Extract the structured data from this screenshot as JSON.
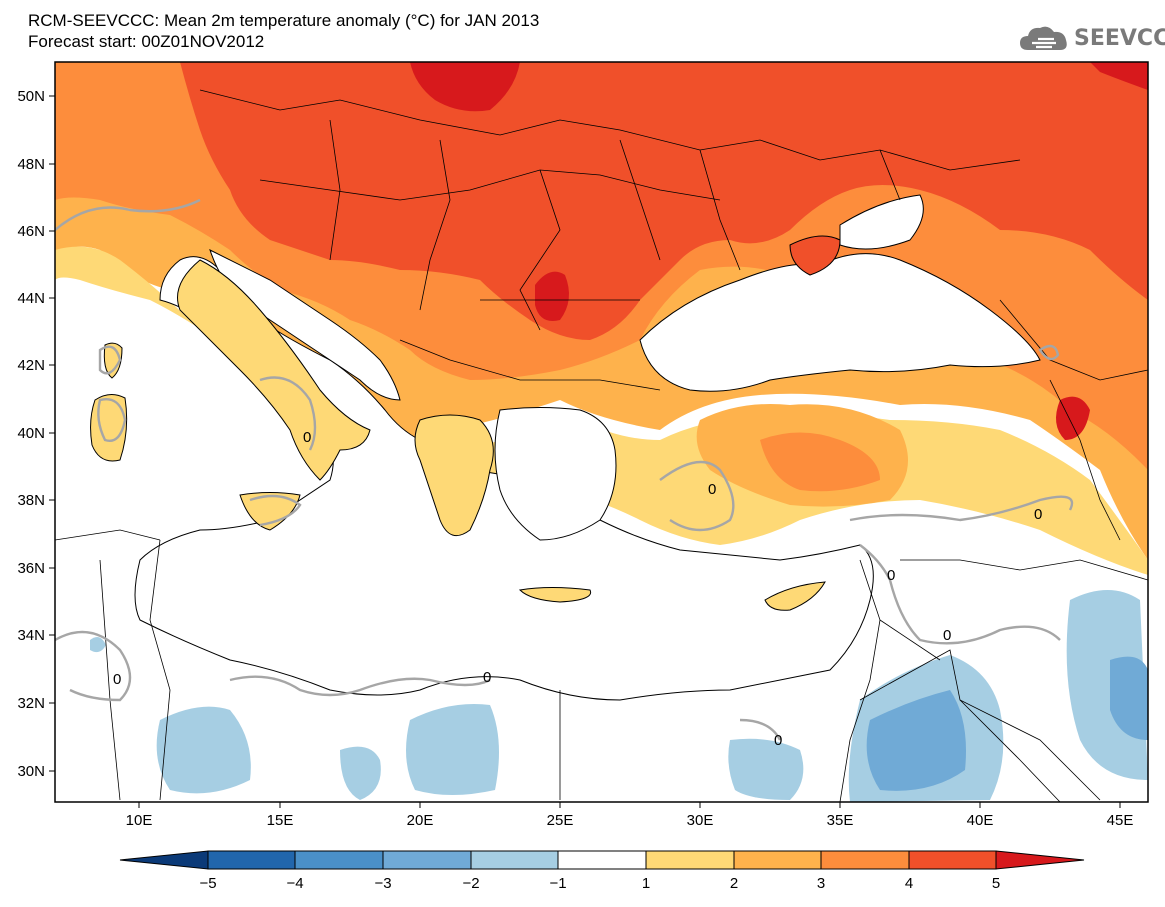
{
  "header": {
    "title": "RCM-SEEVCCC: Mean 2m temperature anomaly (°C) for JAN 2013",
    "subtitle": "Forecast start: 00Z01NOV2012"
  },
  "logo": {
    "text": "SEEVCCC",
    "icon": "cloud-icon"
  },
  "map": {
    "lon_ticks": [
      "10E",
      "15E",
      "20E",
      "25E",
      "30E",
      "35E",
      "40E",
      "45E"
    ],
    "lat_ticks": [
      "50N",
      "48N",
      "46N",
      "44N",
      "42N",
      "40N",
      "38N",
      "36N",
      "34N",
      "32N",
      "30N"
    ],
    "zero_contour_label": "0",
    "zero_contour_labels": [
      "0",
      "0",
      "0",
      "0",
      "0",
      "0",
      "0",
      "0"
    ]
  },
  "colorbar": {
    "labels": [
      "−5",
      "−4",
      "−3",
      "−2",
      "−1",
      "1",
      "2",
      "3",
      "4",
      "5"
    ],
    "colors": {
      "below_-5": "#0b3a78",
      "-5_-4": "#2166ac",
      "-4_-3": "#4a90c8",
      "-3_-2": "#70aad6",
      "-2_-1": "#a6cee3",
      "-1_1": "#ffffff",
      "1_2": "#fed976",
      "2_3": "#feb24c",
      "3_4": "#fd8d3c",
      "4_5": "#f0502a",
      "above_5": "#d7191c"
    }
  }
}
